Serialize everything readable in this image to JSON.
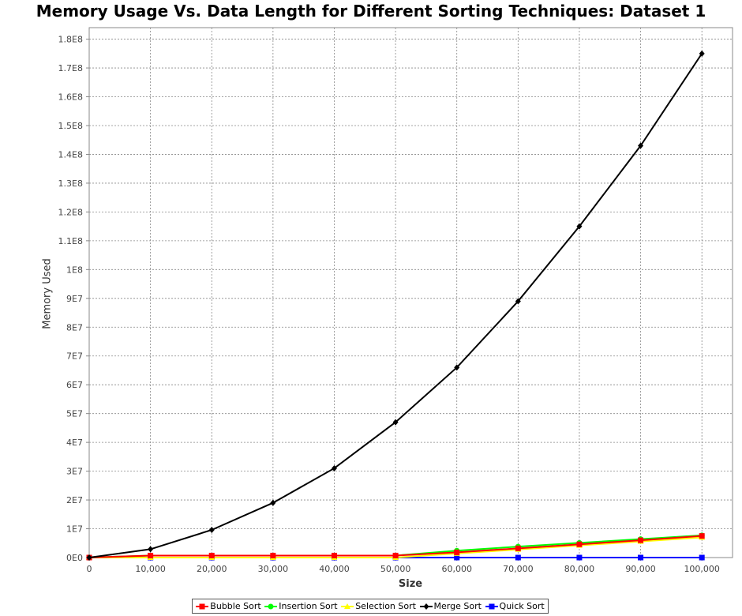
{
  "chart_data": {
    "type": "line",
    "title": "Memory Usage Vs. Data Length for Different Sorting Techniques: Dataset 1",
    "xlabel": "Size",
    "ylabel": "Memory Used",
    "x": [
      0,
      10000,
      20000,
      30000,
      40000,
      50000,
      60000,
      70000,
      80000,
      90000,
      100000
    ],
    "x_tick_labels": [
      "0",
      "10,000",
      "20,000",
      "30,000",
      "40,000",
      "50,000",
      "60,000",
      "70,000",
      "80,000",
      "90,000",
      "100,000"
    ],
    "y_ticks": [
      0,
      10000000,
      20000000,
      30000000,
      40000000,
      50000000,
      60000000,
      70000000,
      80000000,
      90000000,
      100000000,
      110000000,
      120000000,
      130000000,
      140000000,
      150000000,
      160000000,
      170000000,
      180000000
    ],
    "y_tick_labels": [
      "0E0",
      "1E7",
      "2E7",
      "3E7",
      "4E7",
      "5E7",
      "6E7",
      "7E7",
      "8E7",
      "9E7",
      "1E8",
      "1.1E8",
      "1.2E8",
      "1.3E8",
      "1.4E8",
      "1.5E8",
      "1.6E8",
      "1.7E8",
      "1.8E8"
    ],
    "xlim": [
      0,
      105000
    ],
    "ylim": [
      0,
      184000000
    ],
    "grid": true,
    "legend_position": "bottom",
    "series": [
      {
        "name": "Bubble Sort",
        "color": "#ff0000",
        "marker": "square",
        "values": [
          0,
          700000,
          700000,
          700000,
          700000,
          700000,
          1800000,
          3200000,
          4600000,
          6000000,
          7500000
        ]
      },
      {
        "name": "Insertion Sort",
        "color": "#00ff00",
        "marker": "circle",
        "values": [
          0,
          700000,
          700000,
          700000,
          700000,
          700000,
          2400000,
          3800000,
          5100000,
          6400000,
          7700000
        ]
      },
      {
        "name": "Selection Sort",
        "color": "#ffff00",
        "marker": "triangle",
        "values": [
          0,
          0,
          0,
          0,
          0,
          0,
          1400000,
          2800000,
          4200000,
          5600000,
          7000000
        ]
      },
      {
        "name": "Merge Sort",
        "color": "#000000",
        "marker": "diamond",
        "values": [
          0,
          2900000,
          9600000,
          19000000,
          31000000,
          47000000,
          66000000,
          89000000,
          115000000,
          143000000,
          175000000
        ]
      },
      {
        "name": "Quick Sort",
        "color": "#0000ff",
        "marker": "square",
        "values": [
          0,
          0,
          0,
          0,
          0,
          0,
          0,
          0,
          0,
          0,
          0
        ]
      }
    ]
  }
}
